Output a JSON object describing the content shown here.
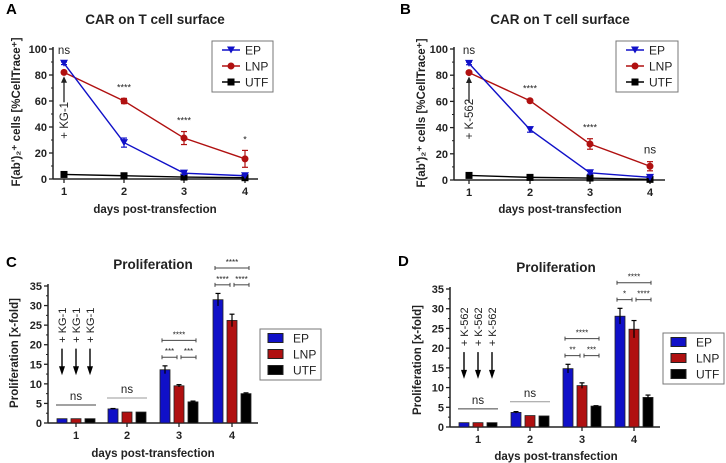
{
  "colors": {
    "EP": "#1010c8",
    "LNP": "#b01010",
    "UTF": "#000000"
  },
  "chart_data": [
    {
      "panel": "A",
      "type": "line",
      "title": "CAR on T cell surface",
      "xlabel": "days post-transfection",
      "ylabel": "F(ab')₂⁺ cells [%CellTrace⁺]",
      "categories": [
        "1",
        "2",
        "3",
        "4"
      ],
      "ylim": [
        0,
        100
      ],
      "yticks": [
        "0",
        "20",
        "40",
        "60",
        "80",
        "100"
      ],
      "legend": "top-right",
      "series": [
        {
          "name": "EP",
          "marker": "triangle-down",
          "values": [
            89,
            28,
            4.5,
            2.5
          ],
          "errors": [
            1,
            3.5,
            1,
            0.5
          ]
        },
        {
          "name": "LNP",
          "marker": "circle",
          "values": [
            82,
            60,
            31.5,
            15.5
          ],
          "errors": [
            1,
            2,
            5,
            6.5
          ]
        },
        {
          "name": "UTF",
          "marker": "square",
          "values": [
            3.5,
            2.5,
            1.5,
            1
          ],
          "errors": [
            0.5,
            0.5,
            0.5,
            0.5
          ]
        }
      ],
      "annotations": [
        "ns",
        "****",
        "****",
        "*"
      ],
      "arrow_label": "+ KG-1"
    },
    {
      "panel": "B",
      "type": "line",
      "title": "CAR on T cell surface",
      "xlabel": "days post-transfection",
      "ylabel": "F(ab')₂⁺ cells [%CellTrace⁺]",
      "categories": [
        "1",
        "2",
        "3",
        "4"
      ],
      "ylim": [
        0,
        100
      ],
      "yticks": [
        "0",
        "20",
        "40",
        "60",
        "80",
        "100"
      ],
      "legend": "top-right",
      "series": [
        {
          "name": "EP",
          "marker": "triangle-down",
          "values": [
            89,
            38.5,
            5.5,
            2
          ],
          "errors": [
            1,
            2,
            1,
            0.5
          ]
        },
        {
          "name": "LNP",
          "marker": "circle",
          "values": [
            82,
            60.5,
            27.5,
            10.5
          ],
          "errors": [
            1,
            1,
            4,
            3.5
          ]
        },
        {
          "name": "UTF",
          "marker": "square",
          "values": [
            3.5,
            2,
            1.5,
            0.5
          ],
          "errors": [
            0.5,
            0.5,
            0.5,
            0.5
          ]
        }
      ],
      "annotations": [
        "ns",
        "****",
        "****",
        "ns"
      ],
      "arrow_label": "+ K-562"
    },
    {
      "panel": "C",
      "type": "bar",
      "title": "Proliferation",
      "xlabel": "days post-transfection",
      "ylabel": "Proliferation [x-fold]",
      "categories": [
        "1",
        "2",
        "3",
        "4"
      ],
      "ylim": [
        0,
        35
      ],
      "yticks": [
        "0",
        "5",
        "10",
        "15",
        "20",
        "25",
        "30",
        "35"
      ],
      "legend": "right",
      "series": [
        {
          "name": "EP",
          "values": [
            1.1,
            3.6,
            13.6,
            31.5
          ],
          "errors": [
            0,
            0.1,
            1,
            1.6
          ]
        },
        {
          "name": "LNP",
          "values": [
            1.1,
            2.8,
            9.5,
            26.2
          ],
          "errors": [
            0,
            0,
            0.3,
            1.6
          ]
        },
        {
          "name": "UTF",
          "values": [
            1.1,
            2.8,
            5.4,
            7.5
          ],
          "errors": [
            0,
            0,
            0.2,
            0.2
          ]
        }
      ],
      "group_annotations": [
        {
          "day": "1",
          "ns": "ns"
        },
        {
          "day": "2",
          "ns": "ns"
        },
        {
          "day": "3",
          "EP_vs_LNP": "***",
          "LNP_vs_UTF": "***",
          "EP_vs_UTF": "****"
        },
        {
          "day": "4",
          "EP_vs_LNP": "****",
          "LNP_vs_UTF": "****",
          "EP_vs_UTF": "****"
        }
      ],
      "arrow_label": "+ KG-1"
    },
    {
      "panel": "D",
      "type": "bar",
      "title": "Proliferation",
      "xlabel": "days post-transfection",
      "ylabel": "Proliferation [x-fold]",
      "categories": [
        "1",
        "2",
        "3",
        "4"
      ],
      "ylim": [
        0,
        35
      ],
      "yticks": [
        "0",
        "5",
        "10",
        "15",
        "20",
        "25",
        "30",
        "35"
      ],
      "legend": "right",
      "series": [
        {
          "name": "EP",
          "values": [
            1.1,
            3.7,
            14.8,
            28.1
          ],
          "errors": [
            0,
            0.2,
            1.1,
            2
          ]
        },
        {
          "name": "LNP",
          "values": [
            1.1,
            2.9,
            10.5,
            24.8
          ],
          "errors": [
            0,
            0,
            0.7,
            2.2
          ]
        },
        {
          "name": "UTF",
          "values": [
            1.1,
            2.8,
            5.3,
            7.5
          ],
          "errors": [
            0,
            0,
            0.1,
            0.6
          ]
        }
      ],
      "group_annotations": [
        {
          "day": "1",
          "ns": "ns"
        },
        {
          "day": "2",
          "ns": "ns"
        },
        {
          "day": "3",
          "EP_vs_LNP": "**",
          "LNP_vs_UTF": "***",
          "EP_vs_UTF": "****"
        },
        {
          "day": "4",
          "EP_vs_LNP": "*",
          "LNP_vs_UTF": "****",
          "EP_vs_UTF": "****"
        }
      ],
      "arrow_label": "+ K-562"
    }
  ]
}
